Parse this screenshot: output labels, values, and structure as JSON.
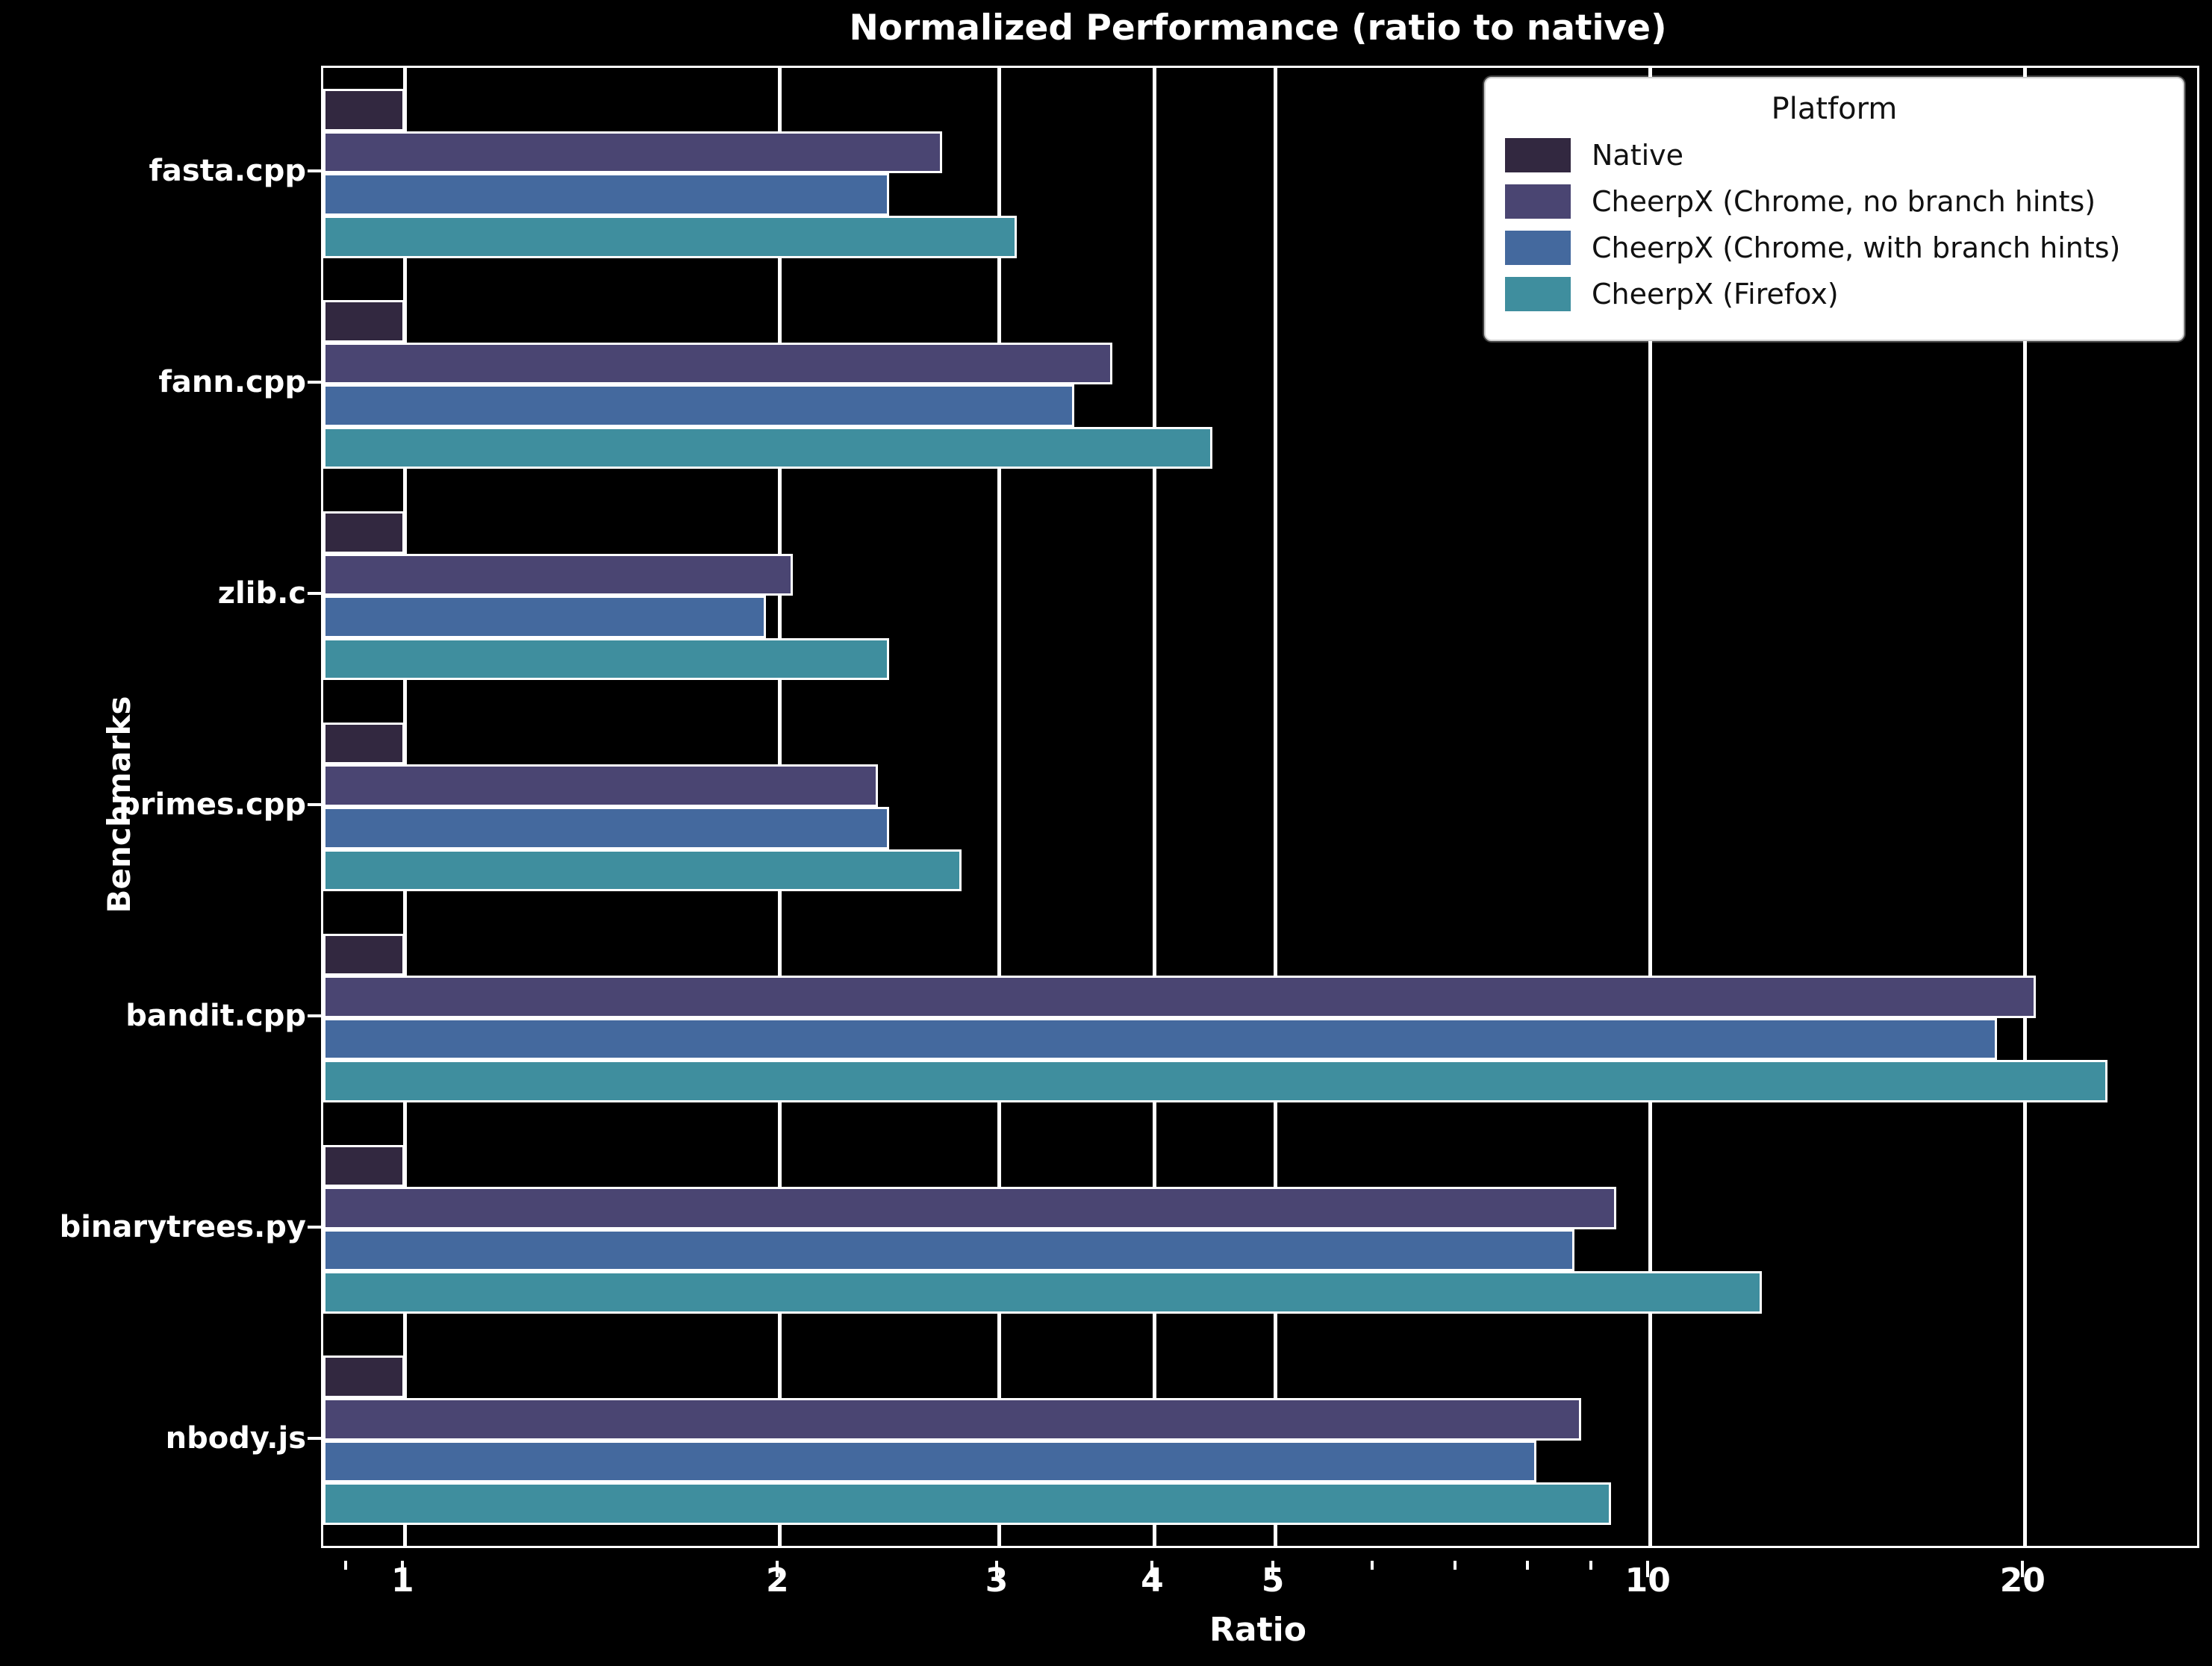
{
  "title": "Normalized Performance (ratio to native)",
  "xlabel": "Ratio",
  "ylabel": "Benchmarks",
  "legend": {
    "title": "Platform",
    "position": "upper right"
  },
  "colors": {
    "background": "#000000",
    "text": "#ffffff",
    "grid": "#ffffff",
    "bar_outline": "#ffffff",
    "legend_background": "#ffffff",
    "legend_text": "#111111"
  },
  "chart_data": {
    "type": "bar",
    "orientation": "horizontal",
    "title": "Normalized Performance (ratio to native)",
    "xlabel": "Ratio",
    "ylabel": "Benchmarks",
    "grid": true,
    "x_scale": "log",
    "x_axis_min": 0.86,
    "x_axis_max": 27.5,
    "x_ticks_major": [
      1,
      2,
      3,
      4,
      5,
      10,
      20
    ],
    "x_ticks_minor": [
      0.9,
      6,
      7,
      8,
      9
    ],
    "categories": [
      "fasta.cpp",
      "fann.cpp",
      "zlib.c",
      "primes.cpp",
      "bandit.cpp",
      "binarytrees.py",
      "nbody.js"
    ],
    "series": [
      {
        "name": "Native",
        "color": "#322840",
        "values": [
          1.0,
          1.0,
          1.0,
          1.0,
          1.0,
          1.0,
          1.0
        ]
      },
      {
        "name": "CheerpX (Chrome, no branch hints)",
        "color": "#4a4572",
        "values": [
          2.7,
          3.7,
          2.05,
          2.4,
          20.4,
          9.4,
          8.8
        ]
      },
      {
        "name": "CheerpX (Chrome, with branch hints)",
        "color": "#44699e",
        "values": [
          2.45,
          3.45,
          1.95,
          2.45,
          19.0,
          8.7,
          8.1
        ]
      },
      {
        "name": "CheerpX (Firefox)",
        "color": "#3f8e9e",
        "values": [
          3.1,
          4.45,
          2.45,
          2.8,
          23.3,
          12.3,
          9.3
        ]
      }
    ]
  }
}
